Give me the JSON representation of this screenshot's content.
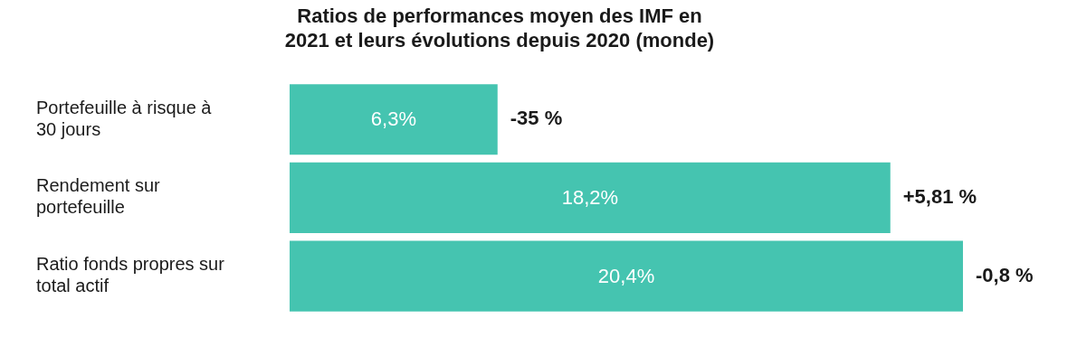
{
  "chart_data": {
    "type": "bar",
    "orientation": "horizontal",
    "title": "Ratios de performances moyen des IMF en 2021 et leurs évolutions depuis 2020 (monde)",
    "categories": [
      "Portefeuille à risque à 30 jours",
      "Rendement sur portefeuille",
      "Ratio fonds propres sur total actif"
    ],
    "values": [
      6.3,
      18.2,
      20.4
    ],
    "value_labels": [
      "6,3%",
      "18,2%",
      "20,4%"
    ],
    "annotations": [
      "-35 %",
      "+5,81 %",
      "-0,8 %"
    ],
    "color": "#45c4b0",
    "xlim": [
      0,
      20.4
    ],
    "grid": false,
    "data_labels": true,
    "tick_labels": false
  }
}
